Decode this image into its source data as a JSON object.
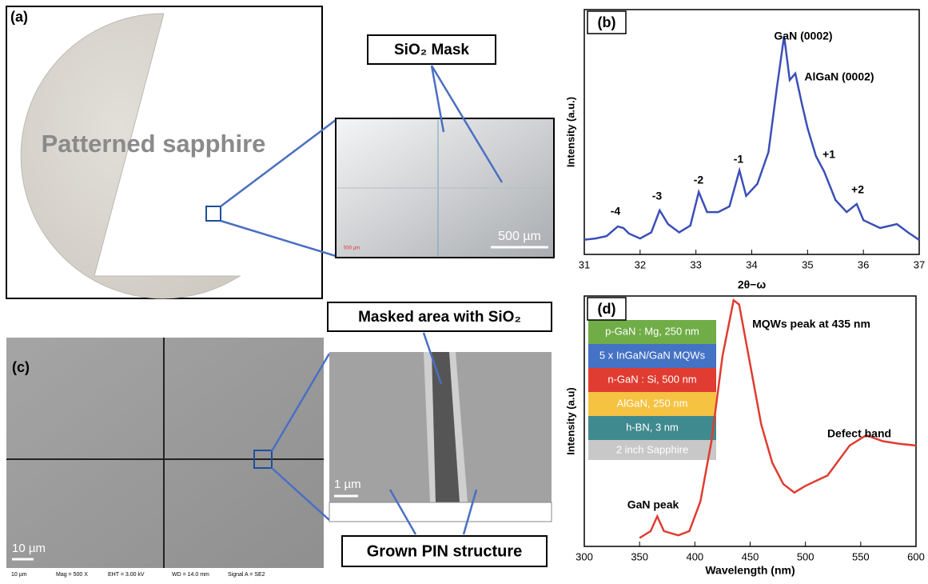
{
  "panel_a": {
    "label": "(a)",
    "wafer_text": "Patterned sapphire",
    "mask_callout": "SiO₂ Mask",
    "scale_bar": "500 µm",
    "inset_scale_text": "500 µm"
  },
  "panel_c": {
    "label": "(c)",
    "masked_callout": "Masked area with SiO₂",
    "scale_bar": "10 µm",
    "inset_scale_bar": "1 µm",
    "pin_callout": "Grown PIN structure",
    "info": [
      "10 µm",
      "Mag =   500 X",
      "EHT =  3.00 kV",
      "WD = 14.0 mm",
      "Signal A = SE2"
    ]
  },
  "panel_d_layers": [
    "p-GaN : Mg, 250 nm",
    "5 x InGaN/GaN MQWs",
    "n-GaN : Si, 500 nm",
    "AlGaN, 250 nm",
    "h-BN, 3 nm",
    "2 inch Sapphire"
  ],
  "chart_data": [
    {
      "type": "line",
      "title": "(b)",
      "xlabel": "2θ−ω",
      "ylabel": "Intensity (a.u.)",
      "x": [
        31.0,
        31.2,
        31.4,
        31.6,
        31.7,
        31.8,
        32.0,
        32.2,
        32.35,
        32.5,
        32.7,
        32.9,
        33.05,
        33.2,
        33.4,
        33.6,
        33.78,
        33.9,
        34.1,
        34.3,
        34.45,
        34.58,
        34.68,
        34.78,
        34.9,
        35.0,
        35.15,
        35.3,
        35.5,
        35.7,
        35.88,
        36.0,
        36.3,
        36.6,
        36.8,
        37.0
      ],
      "series": [
        {
          "color": "#3b4fb8",
          "values": [
            6,
            6.5,
            7.5,
            11.4,
            10.8,
            8.5,
            6.5,
            9,
            18,
            12.4,
            9,
            11.8,
            25.5,
            17.3,
            17.3,
            19.6,
            34.3,
            23.9,
            28.8,
            41.8,
            68,
            89.2,
            71.2,
            73.9,
            61.4,
            51.6,
            40.2,
            33.7,
            22.2,
            17.3,
            20.6,
            14,
            10.8,
            12.4,
            9,
            5.9
          ]
        }
      ],
      "xlim": [
        31,
        37
      ],
      "ylim": [
        0,
        100
      ],
      "xticks": [
        31,
        32,
        33,
        34,
        35,
        36,
        37
      ],
      "annotations": [
        "GaN (0002)",
        "AlGaN (0002)",
        "-4",
        "-3",
        "-2",
        "-1",
        "+1",
        "+2"
      ]
    },
    {
      "type": "line",
      "title": "(d)",
      "xlabel": "Wavelength (nm)",
      "ylabel": "Intensity (a.u)",
      "x": [
        350,
        360,
        366,
        372,
        385,
        395,
        405,
        415,
        425,
        435,
        440,
        450,
        460,
        470,
        480,
        490,
        500,
        520,
        540,
        555,
        570,
        585,
        600
      ],
      "series": [
        {
          "color": "#e03c31",
          "values": [
            3.4,
            6.1,
            12,
            6.1,
            4.4,
            6.1,
            18,
            42,
            76,
            98.3,
            96.6,
            72.7,
            48.8,
            33.4,
            24.9,
            21.5,
            24.2,
            28.3,
            40.3,
            44.4,
            42,
            41,
            40.3
          ]
        }
      ],
      "xlim": [
        300,
        600
      ],
      "ylim": [
        0,
        100
      ],
      "xticks": [
        300,
        350,
        400,
        450,
        500,
        550,
        600
      ],
      "annotations": [
        "MQWs peak at 435 nm",
        "GaN peak",
        "Defect band"
      ]
    }
  ]
}
